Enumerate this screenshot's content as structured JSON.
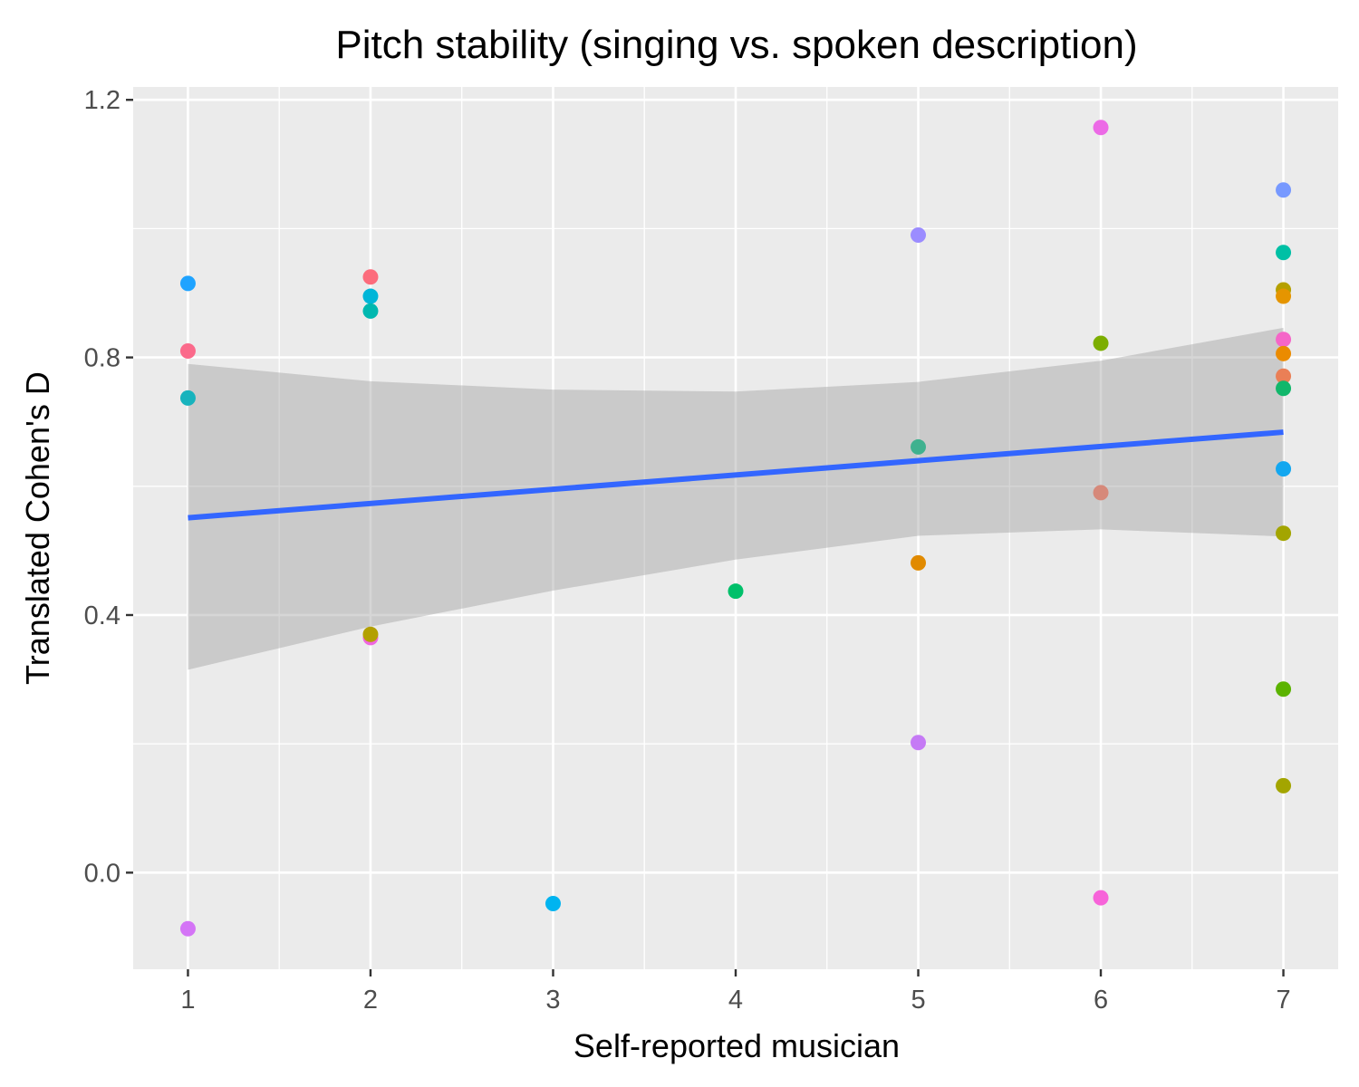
{
  "chart_data": {
    "type": "scatter",
    "title": "Pitch stability (singing vs. spoken description)",
    "xlabel": "Self-reported musician",
    "ylabel": "Translated Cohen's D",
    "xlim": [
      0.7,
      7.3
    ],
    "ylim": [
      -0.15,
      1.22
    ],
    "x_ticks": [
      1,
      2,
      3,
      4,
      5,
      6,
      7
    ],
    "y_ticks": [
      0.0,
      0.4,
      0.8,
      1.2
    ],
    "y_tick_labels": [
      "0.0",
      "0.4",
      "0.8",
      "1.2"
    ],
    "x_tick_labels": [
      "1",
      "2",
      "3",
      "4",
      "5",
      "6",
      "7"
    ],
    "grid": true,
    "legend": "none",
    "panel_background": "#ebebeb",
    "points": [
      {
        "x": 1,
        "y": 0.915,
        "color": "#1fa3ff"
      },
      {
        "x": 1,
        "y": 0.81,
        "color": "#fb6a8b"
      },
      {
        "x": 1,
        "y": 0.737,
        "color": "#17b3bd"
      },
      {
        "x": 1,
        "y": -0.087,
        "color": "#d474f6"
      },
      {
        "x": 2,
        "y": 0.925,
        "color": "#fc6c7c"
      },
      {
        "x": 2,
        "y": 0.895,
        "color": "#00b6d8"
      },
      {
        "x": 2,
        "y": 0.872,
        "color": "#00b8b0"
      },
      {
        "x": 2,
        "y": 0.365,
        "color": "#ef66e0"
      },
      {
        "x": 2,
        "y": 0.37,
        "color": "#b3a000"
      },
      {
        "x": 3,
        "y": -0.048,
        "color": "#00b4f0"
      },
      {
        "x": 4,
        "y": 0.437,
        "color": "#00c06a"
      },
      {
        "x": 5,
        "y": 0.99,
        "color": "#9b8cff"
      },
      {
        "x": 5,
        "y": 0.661,
        "color": "#3fb18f"
      },
      {
        "x": 5,
        "y": 0.481,
        "color": "#e18a00"
      },
      {
        "x": 5,
        "y": 0.202,
        "color": "#c57af5"
      },
      {
        "x": 6,
        "y": 1.157,
        "color": "#ec6ae6"
      },
      {
        "x": 6,
        "y": 0.822,
        "color": "#7cae00"
      },
      {
        "x": 6,
        "y": 0.59,
        "color": "#d6897a"
      },
      {
        "x": 6,
        "y": -0.039,
        "color": "#f763d9"
      },
      {
        "x": 7,
        "y": 1.06,
        "color": "#7799ff"
      },
      {
        "x": 7,
        "y": 0.963,
        "color": "#00c0a5"
      },
      {
        "x": 7,
        "y": 0.905,
        "color": "#b5a000"
      },
      {
        "x": 7,
        "y": 0.895,
        "color": "#e59500"
      },
      {
        "x": 7,
        "y": 0.828,
        "color": "#f566c8"
      },
      {
        "x": 7,
        "y": 0.806,
        "color": "#eb8b00"
      },
      {
        "x": 7,
        "y": 0.771,
        "color": "#ea7f56"
      },
      {
        "x": 7,
        "y": 0.752,
        "color": "#12b76b"
      },
      {
        "x": 7,
        "y": 0.627,
        "color": "#13a7f0"
      },
      {
        "x": 7,
        "y": 0.527,
        "color": "#a3a500"
      },
      {
        "x": 7,
        "y": 0.285,
        "color": "#5bb300"
      },
      {
        "x": 7,
        "y": 0.135,
        "color": "#a3a500"
      }
    ],
    "trend_line": {
      "x": [
        1,
        7
      ],
      "y": [
        0.551,
        0.684
      ],
      "color": "#3366ff",
      "confidence_band": {
        "x": [
          1,
          2,
          3,
          4,
          5,
          6,
          7
        ],
        "upper": [
          0.79,
          0.763,
          0.75,
          0.747,
          0.762,
          0.795,
          0.846
        ],
        "lower": [
          0.315,
          0.382,
          0.438,
          0.486,
          0.523,
          0.533,
          0.522
        ],
        "color": "#999999"
      }
    }
  }
}
